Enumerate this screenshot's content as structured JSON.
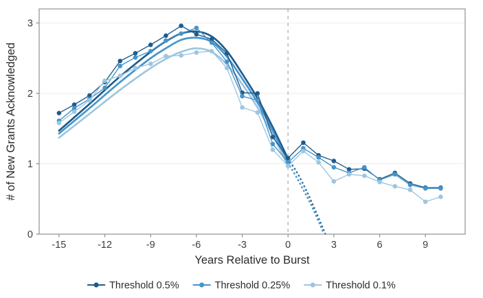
{
  "chart_data": {
    "type": "line",
    "title": "",
    "xlabel": "Years Relative to Burst",
    "ylabel": "# of New Grants Acknowledged",
    "x": [
      -15,
      -14,
      -13,
      -12,
      -11,
      -10,
      -9,
      -8,
      -7,
      -6,
      -5,
      -4,
      -3,
      -2,
      -1,
      0,
      1,
      2,
      3,
      4,
      5,
      6,
      7,
      8,
      9,
      10
    ],
    "series": [
      {
        "name": "Threshold 0.5%",
        "color": "#1f5c8b",
        "values": [
          1.72,
          1.84,
          1.97,
          2.16,
          2.46,
          2.57,
          2.69,
          2.82,
          2.96,
          2.84,
          2.77,
          2.57,
          2.01,
          2.0,
          1.38,
          1.08,
          1.3,
          1.12,
          1.04,
          0.92,
          0.93,
          0.78,
          0.87,
          0.72,
          0.66,
          0.66
        ]
      },
      {
        "name": "Threshold 0.25%",
        "color": "#4694ca",
        "values": [
          1.61,
          1.79,
          1.92,
          2.08,
          2.39,
          2.51,
          2.6,
          2.75,
          2.85,
          2.93,
          2.72,
          2.45,
          1.96,
          1.9,
          1.28,
          1.02,
          1.22,
          1.09,
          0.95,
          0.87,
          0.95,
          0.77,
          0.85,
          0.7,
          0.65,
          0.65
        ]
      },
      {
        "name": "Threshold 0.1%",
        "color": "#9dc6e0",
        "values": [
          1.58,
          1.74,
          1.9,
          2.18,
          2.25,
          2.36,
          2.42,
          2.53,
          2.54,
          2.58,
          2.6,
          2.36,
          1.8,
          1.73,
          1.2,
          0.97,
          1.18,
          1.02,
          0.75,
          0.85,
          0.83,
          0.74,
          0.68,
          0.63,
          0.46,
          0.53
        ]
      }
    ],
    "fit_curves": [
      {
        "name": "Threshold 0.5% fit",
        "color": "#1f5c8b",
        "points": [
          [
            -15,
            1.47
          ],
          [
            -13,
            1.85
          ],
          [
            -11,
            2.24
          ],
          [
            -9,
            2.59
          ],
          [
            -8,
            2.74
          ],
          [
            -7,
            2.85
          ],
          [
            -6,
            2.88
          ],
          [
            -5,
            2.81
          ],
          [
            -4,
            2.6
          ],
          [
            -3,
            2.28
          ],
          [
            -2,
            1.93
          ],
          [
            -1,
            1.52
          ],
          [
            0,
            1.07
          ]
        ]
      },
      {
        "name": "Threshold 0.25% fit",
        "color": "#4694ca",
        "points": [
          [
            -15,
            1.43
          ],
          [
            -13,
            1.79
          ],
          [
            -11,
            2.16
          ],
          [
            -9,
            2.5
          ],
          [
            -8,
            2.64
          ],
          [
            -7,
            2.76
          ],
          [
            -6,
            2.79
          ],
          [
            -5,
            2.73
          ],
          [
            -4,
            2.52
          ],
          [
            -3,
            2.21
          ],
          [
            -2,
            1.87
          ],
          [
            -1,
            1.47
          ],
          [
            0,
            1.01
          ]
        ]
      },
      {
        "name": "Threshold 0.1% fit",
        "color": "#9dc6e0",
        "points": [
          [
            -15,
            1.37
          ],
          [
            -13,
            1.71
          ],
          [
            -11,
            2.05
          ],
          [
            -9,
            2.36
          ],
          [
            -8,
            2.49
          ],
          [
            -7,
            2.59
          ],
          [
            -6,
            2.64
          ],
          [
            -5,
            2.59
          ],
          [
            -4,
            2.41
          ],
          [
            -3,
            2.13
          ],
          [
            -2,
            1.8
          ],
          [
            -1,
            1.41
          ],
          [
            0,
            0.97
          ]
        ]
      }
    ],
    "extrapolation_dotted": [
      {
        "name": "Threshold 0.5% extrapolation",
        "color": "#2f6f9f",
        "points": [
          [
            0,
            1.07
          ],
          [
            0.6,
            0.87
          ],
          [
            1.2,
            0.62
          ],
          [
            1.8,
            0.33
          ],
          [
            2.45,
            0.0
          ]
        ]
      },
      {
        "name": "Threshold 0.25% extrapolation",
        "color": "#4694ca",
        "points": [
          [
            0,
            1.01
          ],
          [
            0.5,
            0.83
          ],
          [
            1.0,
            0.63
          ],
          [
            1.5,
            0.42
          ],
          [
            2.0,
            0.18
          ],
          [
            2.3,
            0.03
          ]
        ]
      }
    ],
    "reference_line_x": 0,
    "x_ticks": [
      -15,
      -12,
      -9,
      -6,
      -3,
      0,
      3,
      6,
      9
    ],
    "y_ticks": [
      0,
      1,
      2,
      3
    ],
    "xlim": [
      -16.3,
      11.6
    ],
    "ylim": [
      0,
      3.2
    ],
    "grid": "horizontal",
    "legend_position": "bottom"
  },
  "styles": {
    "grid_color": "#ececec",
    "border_color": "#909090",
    "ref_line_color": "#b8b8b8",
    "tick_color": "#8c8c8c",
    "text_color": "#3c3c3c"
  }
}
